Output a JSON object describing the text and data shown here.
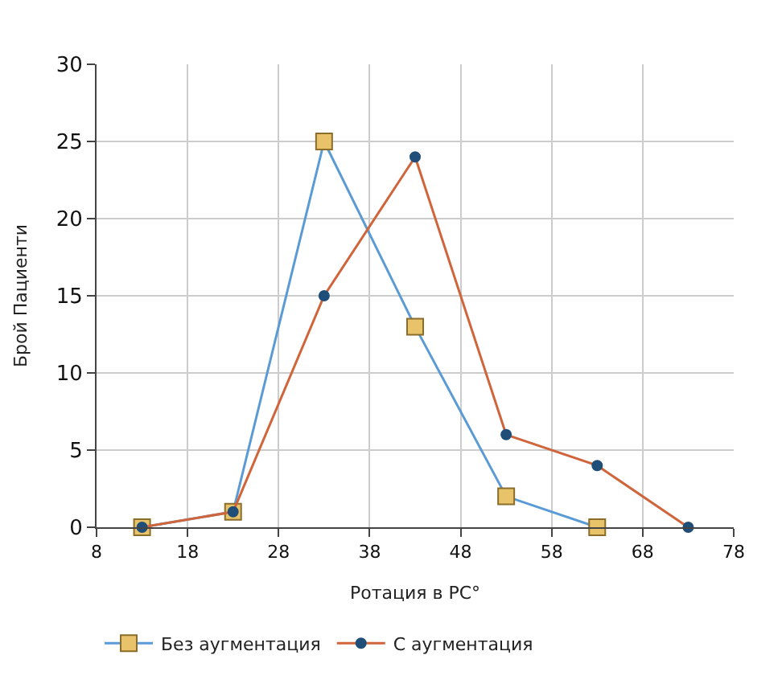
{
  "chart_data": {
    "type": "line",
    "xlabel": "Ротация в PC°",
    "ylabel": "Брой Пациенти",
    "xlim": [
      8,
      78
    ],
    "xticks": [
      8,
      18,
      28,
      38,
      48,
      58,
      68,
      78
    ],
    "ylim": [
      0,
      30
    ],
    "yticks": [
      0,
      5,
      10,
      15,
      20,
      25,
      30
    ],
    "grid": true,
    "legend": "bottom",
    "series": [
      {
        "name": "Без аугментация",
        "color": "#5b9bd5",
        "marker": "square",
        "x": [
          13,
          23,
          33,
          43,
          53,
          63
        ],
        "values": [
          0,
          1,
          25,
          13,
          2,
          0
        ]
      },
      {
        "name": "С аугментация",
        "color": "#d0643a",
        "marker": "circle",
        "x": [
          13,
          23,
          33,
          43,
          53,
          63,
          73
        ],
        "values": [
          0,
          1,
          15,
          24,
          6,
          4,
          0
        ]
      }
    ]
  }
}
